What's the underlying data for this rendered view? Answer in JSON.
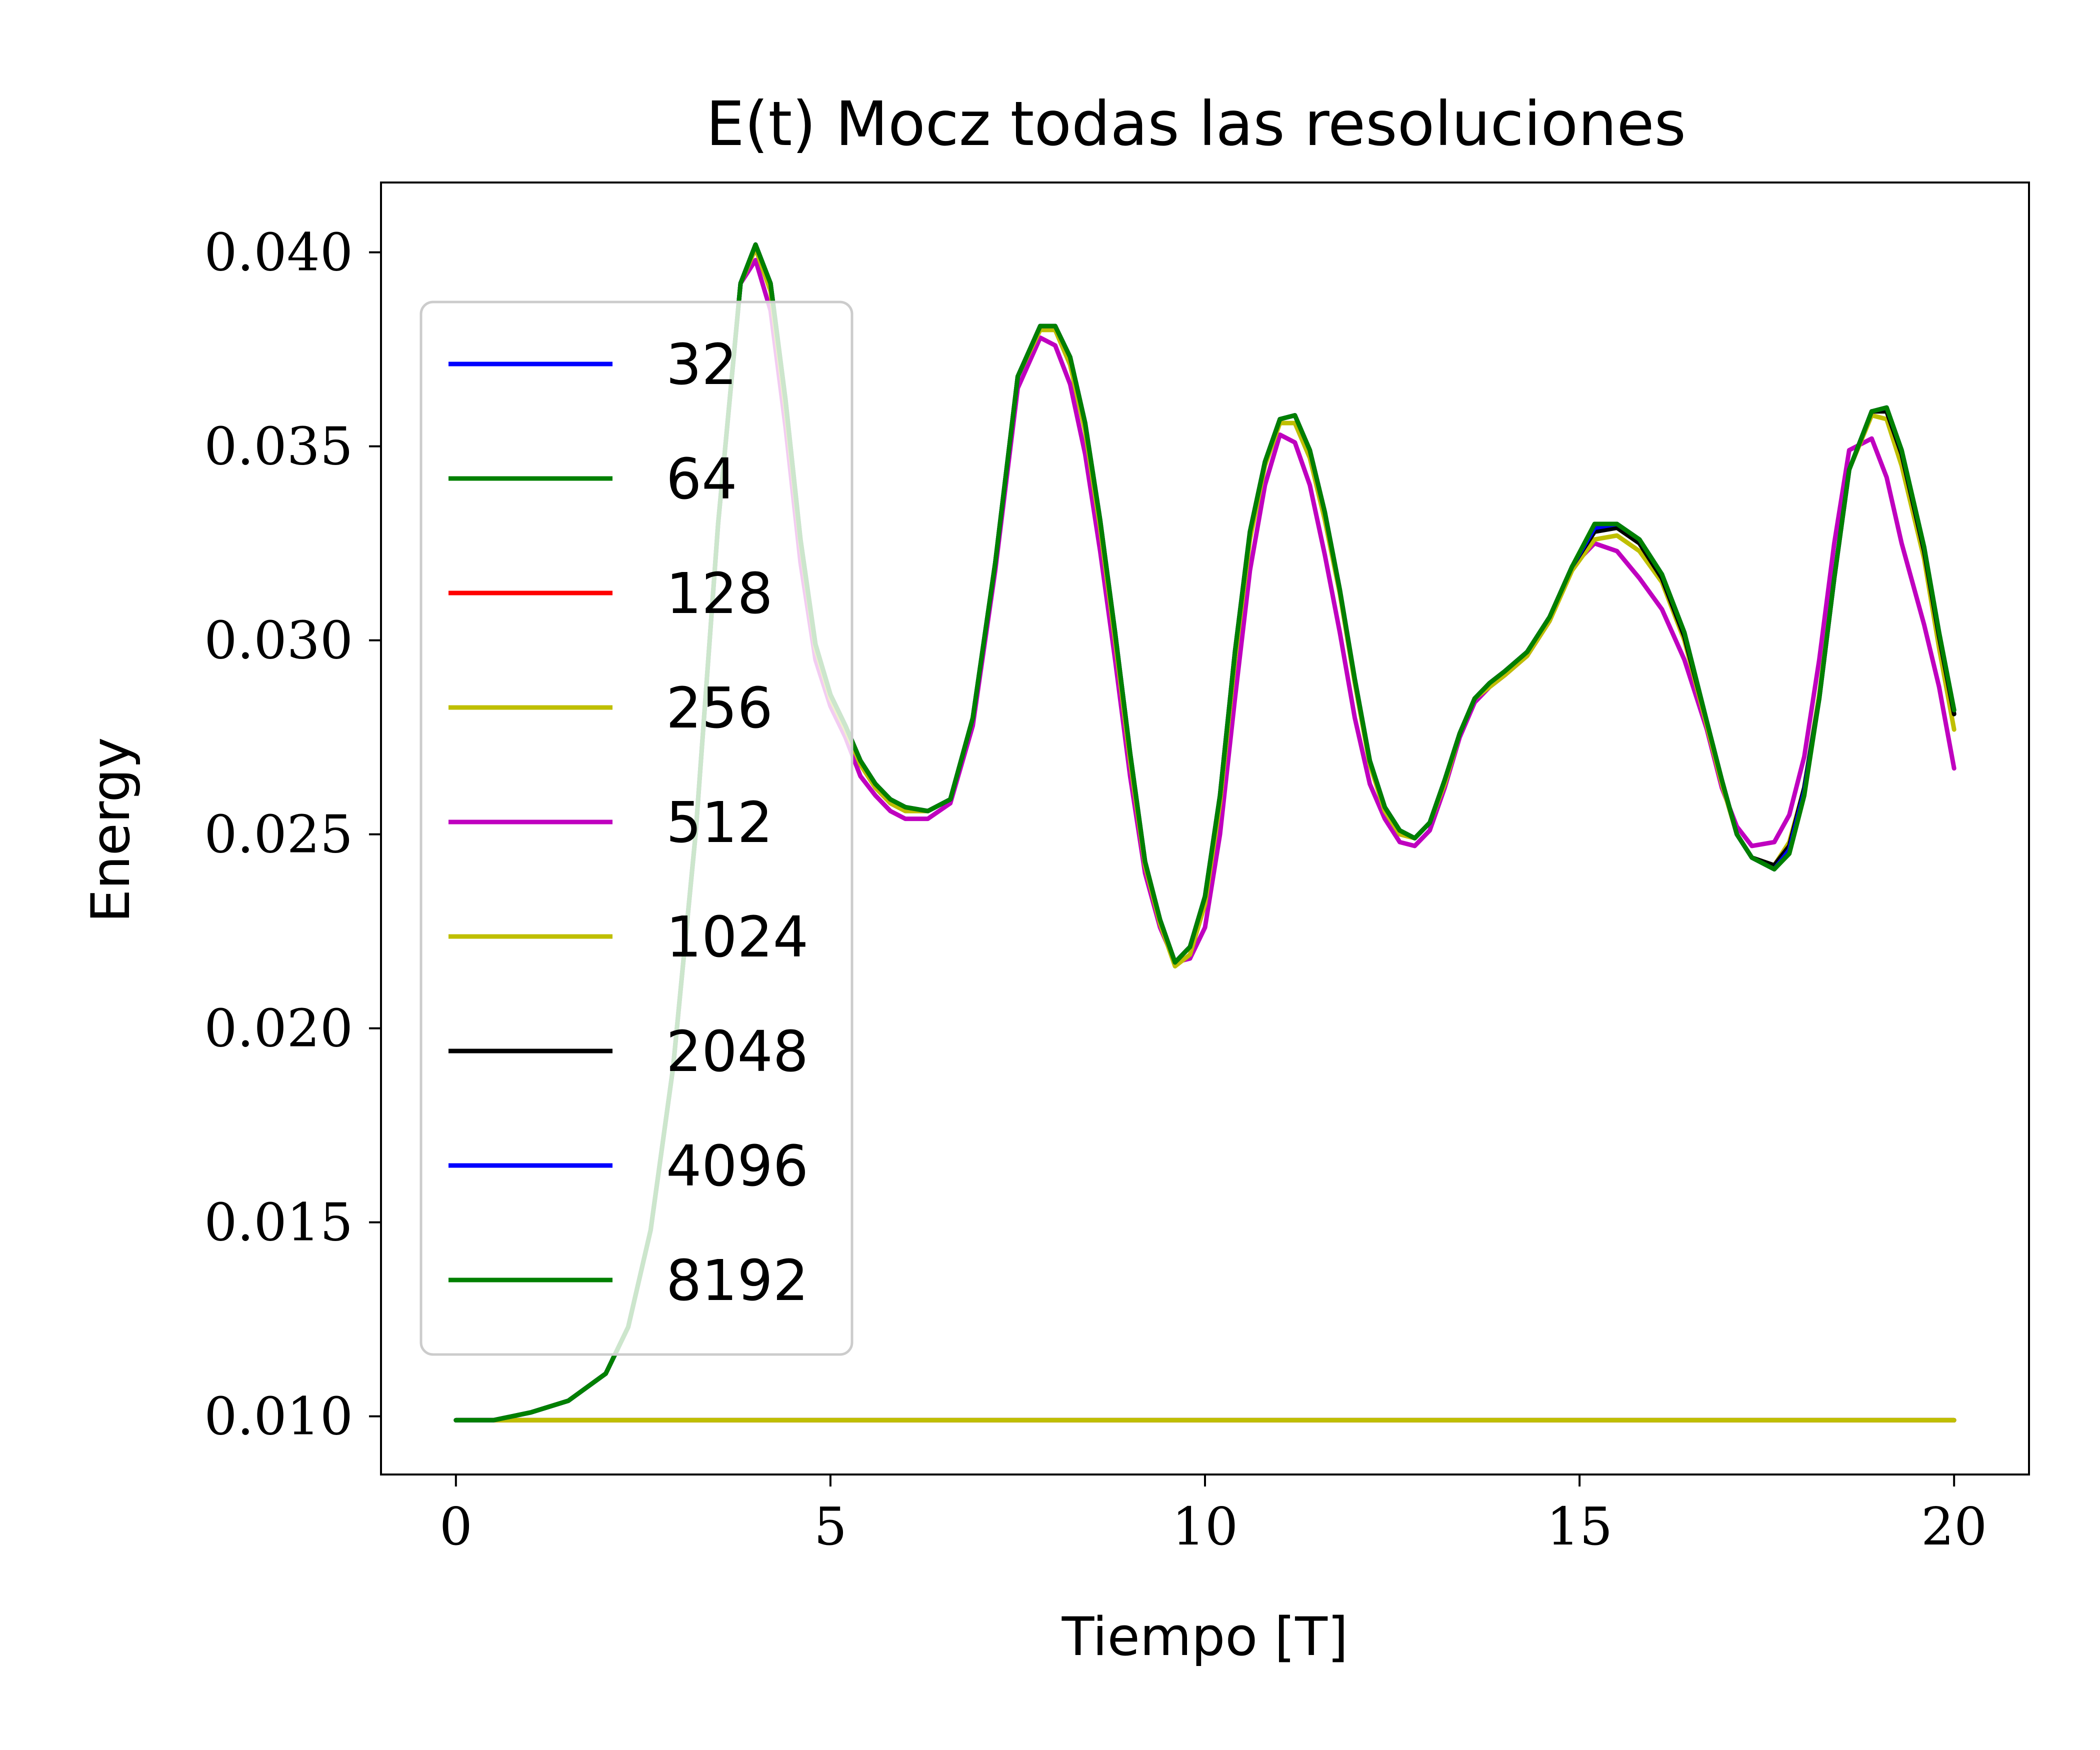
{
  "chart_data": {
    "type": "line",
    "title": "E(t) Mocz todas las resoluciones",
    "xlabel": "Tiempo [T]",
    "ylabel": "Energy",
    "xlim": [
      -1.0,
      21.0
    ],
    "ylim": [
      0.0085,
      0.0418
    ],
    "xticks": [
      0,
      5,
      10,
      15,
      20
    ],
    "yticks": [
      0.01,
      0.015,
      0.02,
      0.025,
      0.03,
      0.035,
      0.04
    ],
    "xtick_labels": [
      "0",
      "5",
      "10",
      "15",
      "20"
    ],
    "ytick_labels": [
      "0.010",
      "0.015",
      "0.020",
      "0.025",
      "0.030",
      "0.035",
      "0.040"
    ],
    "grid": false,
    "legend_position": "upper-left",
    "series": [
      {
        "name": "32",
        "color": "#0000ff",
        "x": [
          0,
          2,
          4,
          6,
          8,
          10,
          12,
          14,
          16,
          18,
          20
        ],
        "y": [
          0.0099,
          0.0099,
          0.0099,
          0.0099,
          0.0099,
          0.0099,
          0.0099,
          0.0099,
          0.0099,
          0.0099,
          0.0099
        ]
      },
      {
        "name": "64",
        "color": "#008000",
        "x": [
          0,
          2,
          4,
          6,
          8,
          10,
          12,
          14,
          16,
          18,
          20
        ],
        "y": [
          0.0099,
          0.0099,
          0.0099,
          0.0099,
          0.0099,
          0.0099,
          0.0099,
          0.0099,
          0.0099,
          0.0099,
          0.0099
        ]
      },
      {
        "name": "128",
        "color": "#ff0000",
        "x": [
          0,
          2,
          4,
          6,
          8,
          10,
          12,
          14,
          16,
          18,
          20
        ],
        "y": [
          0.0099,
          0.0099,
          0.0099,
          0.0099,
          0.0099,
          0.0099,
          0.0099,
          0.0099,
          0.0099,
          0.0099,
          0.0099
        ]
      },
      {
        "name": "256",
        "color": "#bfbf00",
        "x": [
          0,
          2,
          4,
          6,
          8,
          10,
          12,
          14,
          16,
          18,
          20
        ],
        "y": [
          0.0099,
          0.0099,
          0.0099,
          0.0099,
          0.0099,
          0.0099,
          0.0099,
          0.0099,
          0.0099,
          0.0099,
          0.0099
        ]
      },
      {
        "name": "512",
        "color": "#bf00bf",
        "x": [
          0,
          0.5,
          1.0,
          1.5,
          2.0,
          2.3,
          2.6,
          2.9,
          3.2,
          3.5,
          3.8,
          4.0,
          4.2,
          4.4,
          4.6,
          4.8,
          5.0,
          5.2,
          5.4,
          5.6,
          5.8,
          6.0,
          6.3,
          6.6,
          6.9,
          7.2,
          7.5,
          7.8,
          8.0,
          8.2,
          8.4,
          8.6,
          8.8,
          9.0,
          9.2,
          9.4,
          9.6,
          9.8,
          10.0,
          10.2,
          10.4,
          10.6,
          10.8,
          11.0,
          11.2,
          11.4,
          11.6,
          11.8,
          12.0,
          12.2,
          12.4,
          12.6,
          12.8,
          13.0,
          13.2,
          13.4,
          13.6,
          13.8,
          14.0,
          14.3,
          14.6,
          14.9,
          15.2,
          15.5,
          15.8,
          16.1,
          16.4,
          16.7,
          16.9,
          17.1,
          17.3,
          17.6,
          17.8,
          18.0,
          18.2,
          18.4,
          18.6,
          18.9,
          19.1,
          19.3,
          19.6,
          19.8,
          20.0
        ],
        "y": [
          0.0099,
          0.0099,
          0.0101,
          0.0104,
          0.0111,
          0.0123,
          0.0148,
          0.019,
          0.025,
          0.033,
          0.0392,
          0.0398,
          0.0385,
          0.0355,
          0.032,
          0.0295,
          0.0283,
          0.0275,
          0.0265,
          0.026,
          0.0256,
          0.0254,
          0.0254,
          0.0258,
          0.0278,
          0.0318,
          0.0365,
          0.0378,
          0.0376,
          0.0366,
          0.0348,
          0.0323,
          0.0295,
          0.0265,
          0.024,
          0.0226,
          0.0217,
          0.0218,
          0.0226,
          0.025,
          0.0285,
          0.0318,
          0.034,
          0.0353,
          0.0351,
          0.034,
          0.0322,
          0.0302,
          0.028,
          0.0263,
          0.0254,
          0.0248,
          0.0247,
          0.0251,
          0.0262,
          0.0275,
          0.0284,
          0.0288,
          0.0291,
          0.0296,
          0.0305,
          0.0319,
          0.0325,
          0.0323,
          0.0316,
          0.0308,
          0.0295,
          0.0277,
          0.0262,
          0.0252,
          0.0247,
          0.0248,
          0.0255,
          0.027,
          0.0295,
          0.0325,
          0.0349,
          0.0352,
          0.0342,
          0.0325,
          0.0304,
          0.0288,
          0.0267
        ]
      },
      {
        "name": "1024",
        "color": "#bfbf00",
        "x": [
          0,
          0.5,
          1.0,
          1.5,
          2.0,
          2.3,
          2.6,
          2.9,
          3.2,
          3.5,
          3.8,
          4.0,
          4.2,
          4.4,
          4.6,
          4.8,
          5.0,
          5.2,
          5.4,
          5.6,
          5.8,
          6.0,
          6.3,
          6.6,
          6.9,
          7.2,
          7.5,
          7.8,
          8.0,
          8.2,
          8.4,
          8.6,
          8.8,
          9.0,
          9.2,
          9.4,
          9.6,
          9.8,
          10.0,
          10.2,
          10.4,
          10.6,
          10.8,
          11.0,
          11.2,
          11.4,
          11.6,
          11.8,
          12.0,
          12.2,
          12.4,
          12.6,
          12.8,
          13.0,
          13.2,
          13.4,
          13.6,
          13.8,
          14.0,
          14.3,
          14.6,
          14.9,
          15.2,
          15.5,
          15.8,
          16.1,
          16.4,
          16.7,
          16.9,
          17.1,
          17.3,
          17.6,
          17.8,
          18.0,
          18.2,
          18.4,
          18.6,
          18.9,
          19.1,
          19.3,
          19.6,
          19.8,
          20.0
        ],
        "y": [
          0.0099,
          0.0099,
          0.0101,
          0.0104,
          0.0111,
          0.0123,
          0.0148,
          0.019,
          0.025,
          0.033,
          0.0392,
          0.0401,
          0.039,
          0.036,
          0.0325,
          0.0298,
          0.0285,
          0.0277,
          0.0268,
          0.0262,
          0.0258,
          0.0256,
          0.0256,
          0.0259,
          0.028,
          0.032,
          0.0368,
          0.038,
          0.038,
          0.0371,
          0.0354,
          0.0329,
          0.03,
          0.0269,
          0.0242,
          0.0227,
          0.0216,
          0.0219,
          0.0232,
          0.0258,
          0.0295,
          0.0326,
          0.0345,
          0.0356,
          0.0356,
          0.0347,
          0.0331,
          0.0312,
          0.0289,
          0.0268,
          0.0256,
          0.025,
          0.0249,
          0.0253,
          0.0263,
          0.0276,
          0.0285,
          0.0288,
          0.0291,
          0.0296,
          0.0305,
          0.0318,
          0.0326,
          0.0327,
          0.0323,
          0.0315,
          0.03,
          0.0278,
          0.0263,
          0.025,
          0.0244,
          0.0242,
          0.0248,
          0.0262,
          0.0286,
          0.0316,
          0.0344,
          0.0358,
          0.0357,
          0.0345,
          0.0321,
          0.0298,
          0.0277
        ]
      },
      {
        "name": "2048",
        "color": "#000000",
        "x": [
          0,
          0.5,
          1.0,
          1.5,
          2.0,
          2.3,
          2.6,
          2.9,
          3.2,
          3.5,
          3.8,
          4.0,
          4.2,
          4.4,
          4.6,
          4.8,
          5.0,
          5.2,
          5.4,
          5.6,
          5.8,
          6.0,
          6.3,
          6.6,
          6.9,
          7.2,
          7.5,
          7.8,
          8.0,
          8.2,
          8.4,
          8.6,
          8.8,
          9.0,
          9.2,
          9.4,
          9.6,
          9.8,
          10.0,
          10.2,
          10.4,
          10.6,
          10.8,
          11.0,
          11.2,
          11.4,
          11.6,
          11.8,
          12.0,
          12.2,
          12.4,
          12.6,
          12.8,
          13.0,
          13.2,
          13.4,
          13.6,
          13.8,
          14.0,
          14.3,
          14.6,
          14.9,
          15.2,
          15.5,
          15.8,
          16.1,
          16.4,
          16.7,
          16.9,
          17.1,
          17.3,
          17.6,
          17.8,
          18.0,
          18.2,
          18.4,
          18.6,
          18.9,
          19.1,
          19.3,
          19.6,
          19.8,
          20.0
        ],
        "y": [
          0.0099,
          0.0099,
          0.0101,
          0.0104,
          0.0111,
          0.0123,
          0.0148,
          0.019,
          0.025,
          0.033,
          0.0392,
          0.0402,
          0.0392,
          0.0362,
          0.0326,
          0.0299,
          0.0286,
          0.0278,
          0.0269,
          0.0263,
          0.0259,
          0.0257,
          0.0256,
          0.0259,
          0.028,
          0.032,
          0.0368,
          0.0381,
          0.0381,
          0.0373,
          0.0356,
          0.0331,
          0.0302,
          0.0271,
          0.0243,
          0.0228,
          0.0217,
          0.0221,
          0.0234,
          0.026,
          0.0297,
          0.0328,
          0.0346,
          0.0357,
          0.0358,
          0.0349,
          0.0333,
          0.0313,
          0.029,
          0.0269,
          0.0257,
          0.0251,
          0.0249,
          0.0253,
          0.0264,
          0.0276,
          0.0285,
          0.0289,
          0.0292,
          0.0297,
          0.0306,
          0.0319,
          0.0328,
          0.0329,
          0.0325,
          0.0316,
          0.0301,
          0.0279,
          0.0264,
          0.025,
          0.0244,
          0.0242,
          0.0247,
          0.0262,
          0.0285,
          0.0316,
          0.0344,
          0.0359,
          0.0359,
          0.0348,
          0.0323,
          0.0301,
          0.0281
        ]
      },
      {
        "name": "4096",
        "color": "#0000ff",
        "x": [
          0,
          0.5,
          1.0,
          1.5,
          2.0,
          2.3,
          2.6,
          2.9,
          3.2,
          3.5,
          3.8,
          4.0,
          4.2,
          4.4,
          4.6,
          4.8,
          5.0,
          5.2,
          5.4,
          5.6,
          5.8,
          6.0,
          6.3,
          6.6,
          6.9,
          7.2,
          7.5,
          7.8,
          8.0,
          8.2,
          8.4,
          8.6,
          8.8,
          9.0,
          9.2,
          9.4,
          9.6,
          9.8,
          10.0,
          10.2,
          10.4,
          10.6,
          10.8,
          11.0,
          11.2,
          11.4,
          11.6,
          11.8,
          12.0,
          12.2,
          12.4,
          12.6,
          12.8,
          13.0,
          13.2,
          13.4,
          13.6,
          13.8,
          14.0,
          14.3,
          14.6,
          14.9,
          15.2,
          15.5,
          15.8,
          16.1,
          16.4,
          16.7,
          16.9,
          17.1,
          17.3,
          17.6,
          17.8,
          18.0,
          18.2,
          18.4,
          18.6,
          18.9,
          19.1,
          19.3,
          19.6,
          19.8,
          20.0
        ],
        "y": [
          0.0099,
          0.0099,
          0.0101,
          0.0104,
          0.0111,
          0.0123,
          0.0148,
          0.019,
          0.025,
          0.033,
          0.0392,
          0.0402,
          0.0392,
          0.0362,
          0.0326,
          0.0299,
          0.0286,
          0.0278,
          0.0269,
          0.0263,
          0.0259,
          0.0257,
          0.0256,
          0.0259,
          0.028,
          0.032,
          0.0368,
          0.0381,
          0.0381,
          0.0373,
          0.0356,
          0.0331,
          0.0302,
          0.0271,
          0.0243,
          0.0228,
          0.0217,
          0.0221,
          0.0234,
          0.026,
          0.0297,
          0.0328,
          0.0346,
          0.0357,
          0.0358,
          0.0349,
          0.0333,
          0.0313,
          0.029,
          0.0269,
          0.0257,
          0.0251,
          0.0249,
          0.0253,
          0.0264,
          0.0276,
          0.0285,
          0.0289,
          0.0292,
          0.0297,
          0.0306,
          0.0319,
          0.0329,
          0.033,
          0.0326,
          0.0317,
          0.0302,
          0.0279,
          0.0264,
          0.025,
          0.0244,
          0.0241,
          0.0246,
          0.0261,
          0.0285,
          0.0316,
          0.0344,
          0.0359,
          0.036,
          0.0349,
          0.0324,
          0.0302,
          0.0282
        ]
      },
      {
        "name": "8192",
        "color": "#008000",
        "x": [
          0,
          0.5,
          1.0,
          1.5,
          2.0,
          2.3,
          2.6,
          2.9,
          3.2,
          3.5,
          3.8,
          4.0,
          4.2,
          4.4,
          4.6,
          4.8,
          5.0,
          5.2,
          5.4,
          5.6,
          5.8,
          6.0,
          6.3,
          6.6,
          6.9,
          7.2,
          7.5,
          7.8,
          8.0,
          8.2,
          8.4,
          8.6,
          8.8,
          9.0,
          9.2,
          9.4,
          9.6,
          9.8,
          10.0,
          10.2,
          10.4,
          10.6,
          10.8,
          11.0,
          11.2,
          11.4,
          11.6,
          11.8,
          12.0,
          12.2,
          12.4,
          12.6,
          12.8,
          13.0,
          13.2,
          13.4,
          13.6,
          13.8,
          14.0,
          14.3,
          14.6,
          14.9,
          15.2,
          15.5,
          15.8,
          16.1,
          16.4,
          16.7,
          16.9,
          17.1,
          17.3,
          17.6,
          17.8,
          18.0,
          18.2,
          18.4,
          18.6,
          18.9,
          19.1,
          19.3,
          19.6,
          19.8,
          20.0
        ],
        "y": [
          0.0099,
          0.0099,
          0.0101,
          0.0104,
          0.0111,
          0.0123,
          0.0148,
          0.019,
          0.025,
          0.033,
          0.0392,
          0.0402,
          0.0392,
          0.0362,
          0.0326,
          0.0299,
          0.0286,
          0.0278,
          0.0269,
          0.0263,
          0.0259,
          0.0257,
          0.0256,
          0.0259,
          0.028,
          0.032,
          0.0368,
          0.0381,
          0.0381,
          0.0373,
          0.0356,
          0.0331,
          0.0302,
          0.0271,
          0.0243,
          0.0228,
          0.0217,
          0.0221,
          0.0234,
          0.026,
          0.0297,
          0.0328,
          0.0346,
          0.0357,
          0.0358,
          0.0349,
          0.0333,
          0.0313,
          0.029,
          0.0269,
          0.0257,
          0.0251,
          0.0249,
          0.0253,
          0.0264,
          0.0276,
          0.0285,
          0.0289,
          0.0292,
          0.0297,
          0.0306,
          0.0319,
          0.033,
          0.033,
          0.0326,
          0.0317,
          0.0302,
          0.0279,
          0.0264,
          0.025,
          0.0244,
          0.0241,
          0.0245,
          0.026,
          0.0285,
          0.0316,
          0.0344,
          0.0359,
          0.036,
          0.0349,
          0.0324,
          0.0302,
          0.0282
        ]
      }
    ]
  }
}
